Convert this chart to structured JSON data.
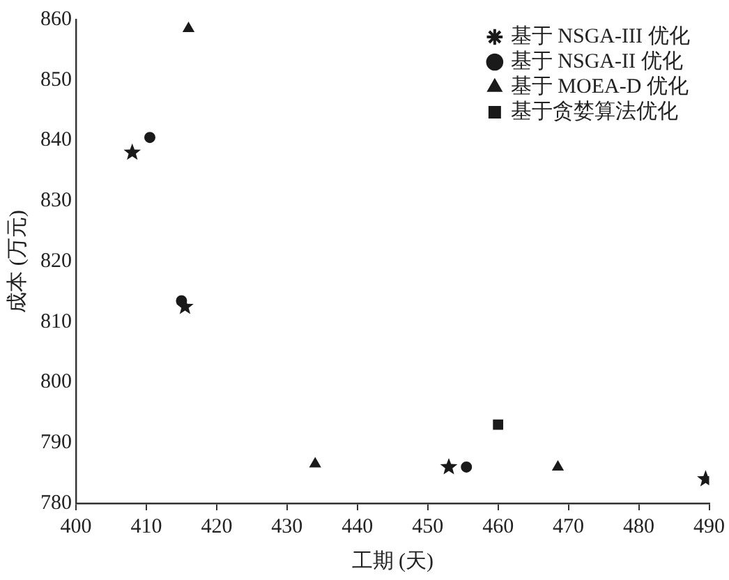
{
  "chart_data": {
    "type": "scatter",
    "xlabel": "工期 (天)",
    "ylabel": "成本 (万元)",
    "xlim": [
      400,
      490
    ],
    "xticks": [
      400,
      410,
      420,
      430,
      440,
      450,
      460,
      470,
      480,
      490
    ],
    "ylim": [
      780,
      860
    ],
    "yticks": [
      780,
      790,
      800,
      810,
      820,
      830,
      840,
      850,
      860
    ],
    "grid": false,
    "legend": "top right",
    "series": [
      {
        "name": "基于 NSGA-III 优化",
        "color": "#1a1a1a",
        "marker": "star",
        "x": [
          408,
          415.5,
          453,
          489.5
        ],
        "values": [
          838,
          812.5,
          786,
          784
        ]
      },
      {
        "name": "基于 NSGA-II 优化",
        "color": "#1a1a1a",
        "marker": "circle",
        "x": [
          410.5,
          415,
          455.5
        ],
        "values": [
          840.5,
          813.5,
          786
        ]
      },
      {
        "name": "基于 MOEA-D 优化",
        "color": "#1a1a1a",
        "marker": "triangle",
        "x": [
          416,
          434,
          468.5
        ],
        "values": [
          858.5,
          786.5,
          786
        ]
      },
      {
        "name": "基于贪婪算法优化",
        "color": "#1a1a1a",
        "marker": "square",
        "x": [
          460
        ],
        "values": [
          793
        ]
      }
    ]
  }
}
